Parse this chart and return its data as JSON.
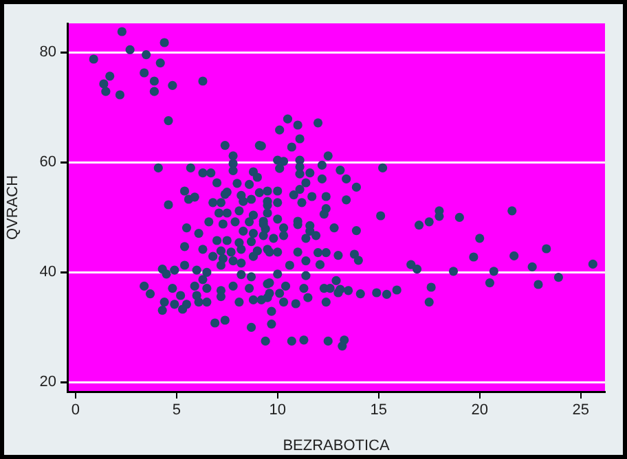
{
  "chart_data": {
    "type": "scatter",
    "xlabel": "BEZRABOTICA",
    "ylabel": "QVRACH",
    "xlim": [
      -0.4,
      26.2
    ],
    "ylim": [
      18.3,
      85.3
    ],
    "xticks": [
      0,
      5,
      10,
      15,
      20,
      25
    ],
    "yticks": [
      20,
      40,
      60,
      80
    ],
    "grid": "y",
    "marker": "circle",
    "series": [
      {
        "color": "#1d4a6c",
        "x": [
          2.3,
          4.4,
          2.7,
          3.5,
          0.9,
          4.2,
          1.7,
          3.4,
          1.4,
          3.9,
          1.5,
          2.2,
          3.9,
          4.8,
          6.3,
          4.6,
          7.4,
          9.1,
          7.8,
          7.8,
          7.8,
          4.1,
          5.7,
          6.3,
          6.7,
          8.8,
          9.0,
          7.0,
          8.0,
          8.6,
          5.4,
          7.5,
          8.2,
          9.1,
          9.5,
          5.6,
          5.9,
          4.6,
          6.8,
          7.2,
          8.3,
          10.5,
          11.0,
          12.0,
          10.1,
          11.1,
          10.7,
          9.2,
          12.5,
          10.0,
          10.3,
          11.1,
          12.2,
          15.2,
          13.1,
          11.1,
          11.1,
          10.1,
          11.6,
          12.2,
          13.4,
          11.4,
          13.9,
          11.1,
          10.0,
          10.8,
          11.7,
          12.4,
          13.4,
          10.0,
          11.2,
          9.5,
          12.4,
          12.3,
          15.1,
          9.3,
          10.0,
          11.0,
          11.6,
          12.8,
          13.9,
          10.3,
          9.4,
          9.8,
          9.6,
          11.0,
          11.6,
          10.3,
          11.4,
          11.9,
          17.0,
          17.5,
          10.0,
          11.0,
          12.0,
          12.4,
          13.0,
          13.8,
          14.0,
          11.4,
          12.1,
          10.6,
          16.6,
          16.9,
          10.0,
          11.4,
          12.9,
          9.6,
          10.4,
          12.3,
          12.6,
          13.1,
          13.5,
          11.3,
          9.2,
          10.1,
          9.6,
          10.3,
          10.9,
          11.5,
          12.4,
          13.0,
          14.1,
          14.9,
          15.4,
          15.9,
          17.6,
          17.5,
          9.7,
          9.7,
          9.4,
          10.7,
          11.3,
          12.5,
          13.3,
          13.2,
          18.0,
          18.0,
          19.0,
          21.6,
          20.0,
          19.7,
          21.7,
          23.3,
          18.7,
          20.7,
          22.6,
          25.6,
          23.9,
          20.5,
          22.9,
          7.4,
          8.7,
          9.5,
          7.5,
          7.1,
          8.1,
          8.8,
          9.5,
          6.6,
          7.3,
          7.9,
          8.6,
          9.3,
          5.5,
          6.1,
          8.3,
          8.8,
          9.3,
          7.0,
          7.5,
          8.1,
          8.7,
          5.4,
          6.3,
          7.2,
          7.7,
          8.2,
          9.0,
          9.5,
          6.8,
          7.3,
          7.8,
          8.2,
          8.8,
          7.2,
          5.4,
          4.9,
          4.3,
          4.5,
          6.0,
          6.5,
          6.3,
          8.2,
          8.7,
          9.5,
          5.9,
          6.5,
          7.2,
          7.8,
          8.6,
          3.4,
          3.7,
          4.8,
          5.2,
          6.0,
          6.5,
          7.2,
          8.1,
          8.8,
          9.5,
          4.4,
          4.9,
          5.5,
          6.1,
          4.3,
          5.3,
          6.9,
          7.4,
          8.7
        ],
        "values": [
          83.8,
          81.8,
          80.5,
          79.6,
          78.8,
          78.1,
          75.7,
          76.3,
          74.3,
          74.8,
          72.9,
          72.3,
          72.9,
          74.0,
          74.8,
          67.6,
          63.1,
          63.1,
          61.2,
          59.8,
          58.5,
          59.0,
          59.0,
          58.1,
          58.1,
          58.3,
          57.3,
          56.3,
          56.2,
          56.0,
          54.8,
          54.6,
          54.0,
          54.5,
          54.8,
          53.3,
          53.7,
          52.3,
          52.7,
          52.7,
          52.9,
          67.9,
          66.8,
          67.2,
          65.9,
          64.3,
          62.8,
          63.0,
          61.2,
          60.4,
          60.2,
          60.4,
          59.5,
          59.0,
          58.6,
          59.2,
          57.9,
          58.9,
          58.1,
          57.0,
          57.0,
          56.3,
          55.5,
          55.1,
          54.8,
          54.1,
          53.8,
          53.8,
          53.2,
          52.7,
          52.7,
          52.2,
          51.6,
          50.6,
          50.3,
          49.3,
          49.7,
          49.3,
          48.5,
          48.1,
          47.6,
          48.1,
          47.9,
          46.2,
          43.7,
          48.7,
          47.5,
          46.7,
          46.2,
          46.7,
          48.6,
          49.2,
          43.7,
          43.7,
          43.6,
          43.6,
          43.1,
          43.3,
          42.2,
          42.1,
          41.4,
          41.3,
          41.4,
          40.6,
          39.7,
          39.4,
          38.5,
          38.1,
          37.5,
          37.1,
          37.1,
          36.9,
          36.7,
          37.1,
          35.0,
          36.2,
          36.2,
          34.6,
          34.3,
          35.4,
          34.6,
          36.3,
          36.1,
          36.3,
          36.0,
          36.8,
          37.3,
          34.6,
          32.9,
          30.6,
          27.5,
          27.5,
          27.7,
          27.5,
          27.7,
          26.6,
          51.2,
          50.2,
          50.0,
          51.2,
          46.2,
          42.8,
          43.0,
          44.3,
          40.2,
          40.2,
          41.0,
          41.5,
          39.1,
          38.1,
          37.8,
          54.2,
          53.3,
          52.9,
          50.8,
          50.8,
          51.2,
          50.4,
          50.8,
          49.2,
          48.8,
          49.2,
          49.2,
          48.8,
          48.1,
          47.1,
          47.5,
          47.1,
          46.7,
          45.8,
          45.8,
          45.4,
          45.6,
          44.7,
          44.2,
          43.9,
          43.7,
          44.2,
          43.9,
          44.2,
          42.9,
          42.5,
          42.1,
          41.7,
          42.9,
          41.3,
          41.3,
          40.4,
          40.6,
          39.7,
          40.4,
          40.0,
          38.7,
          39.6,
          39.2,
          37.9,
          37.5,
          37.1,
          36.7,
          37.5,
          37.1,
          37.5,
          36.1,
          37.1,
          35.8,
          35.8,
          34.6,
          35.6,
          34.6,
          35.0,
          35.4,
          34.6,
          34.2,
          34.2,
          34.6,
          33.1,
          33.3,
          30.8,
          31.3,
          30.0
        ]
      }
    ]
  }
}
